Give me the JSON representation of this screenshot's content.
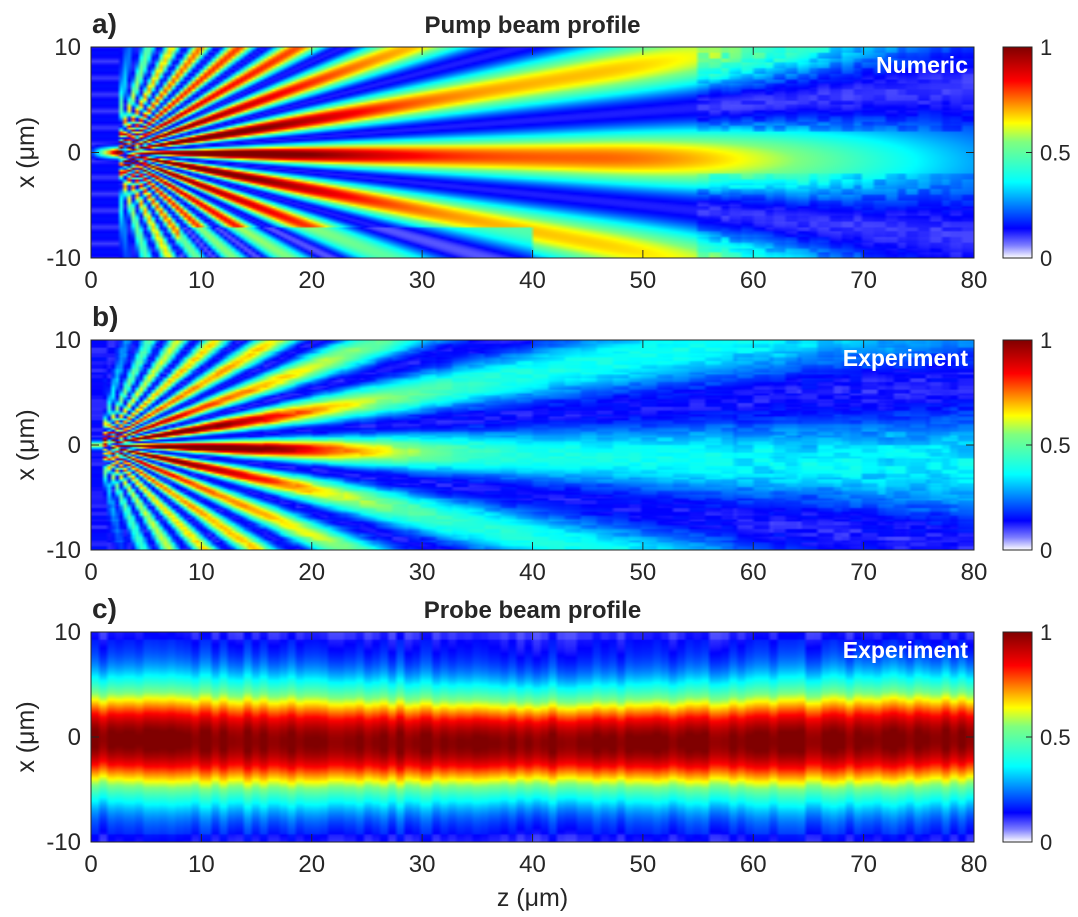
{
  "chart_data": [
    {
      "type": "heatmap",
      "panel_label": "a)",
      "title": "Pump beam profile",
      "annotation": "Numeric",
      "xlabel": "",
      "ylabel": "x (μm)",
      "xlim": [
        0,
        80
      ],
      "ylim": [
        -10,
        10
      ],
      "xticks": [
        "0",
        "10",
        "20",
        "30",
        "40",
        "50",
        "60",
        "70",
        "80"
      ],
      "yticks": [
        "-10",
        "0",
        "10"
      ],
      "colormap": "jet",
      "colorbar": {
        "range": [
          0,
          1
        ],
        "ticks": [
          "0",
          "0.5",
          "1"
        ]
      },
      "field": "interference fringes fanning out from a focus at x=0, z≈5; peak intensity near z=5-25",
      "peak_intensity": 1.0
    },
    {
      "type": "heatmap",
      "panel_label": "b)",
      "title": "",
      "annotation": "Experiment",
      "xlabel": "",
      "ylabel": "x (μm)",
      "xlim": [
        0,
        80
      ],
      "ylim": [
        -10,
        10
      ],
      "xticks": [
        "0",
        "10",
        "20",
        "30",
        "40",
        "50",
        "60",
        "70",
        "80"
      ],
      "yticks": [
        "-10",
        "0",
        "10"
      ],
      "colormap": "jet",
      "colorbar": {
        "range": [
          0,
          1
        ],
        "ticks": [
          "0",
          "0.5",
          "1"
        ]
      },
      "field": "measured fringes fanning out from x=0 near z≈2; peak intensity near z=5-15",
      "peak_intensity": 1.0
    },
    {
      "type": "heatmap",
      "panel_label": "c)",
      "title": "Probe beam profile",
      "annotation": "Experiment",
      "xlabel": "z (μm)",
      "ylabel": "x (μm)",
      "xlim": [
        0,
        80
      ],
      "ylim": [
        -10,
        10
      ],
      "xticks": [
        "0",
        "10",
        "20",
        "30",
        "40",
        "50",
        "60",
        "70",
        "80"
      ],
      "yticks": [
        "-10",
        "0",
        "10"
      ],
      "colormap": "jet",
      "colorbar": {
        "range": [
          0,
          1
        ],
        "ticks": [
          "0",
          "0.5",
          "1"
        ]
      },
      "field": "broad gaussian band centered at x≈0, half-width ≈5 μm, nearly constant along z",
      "peak_intensity": 1.0
    }
  ]
}
